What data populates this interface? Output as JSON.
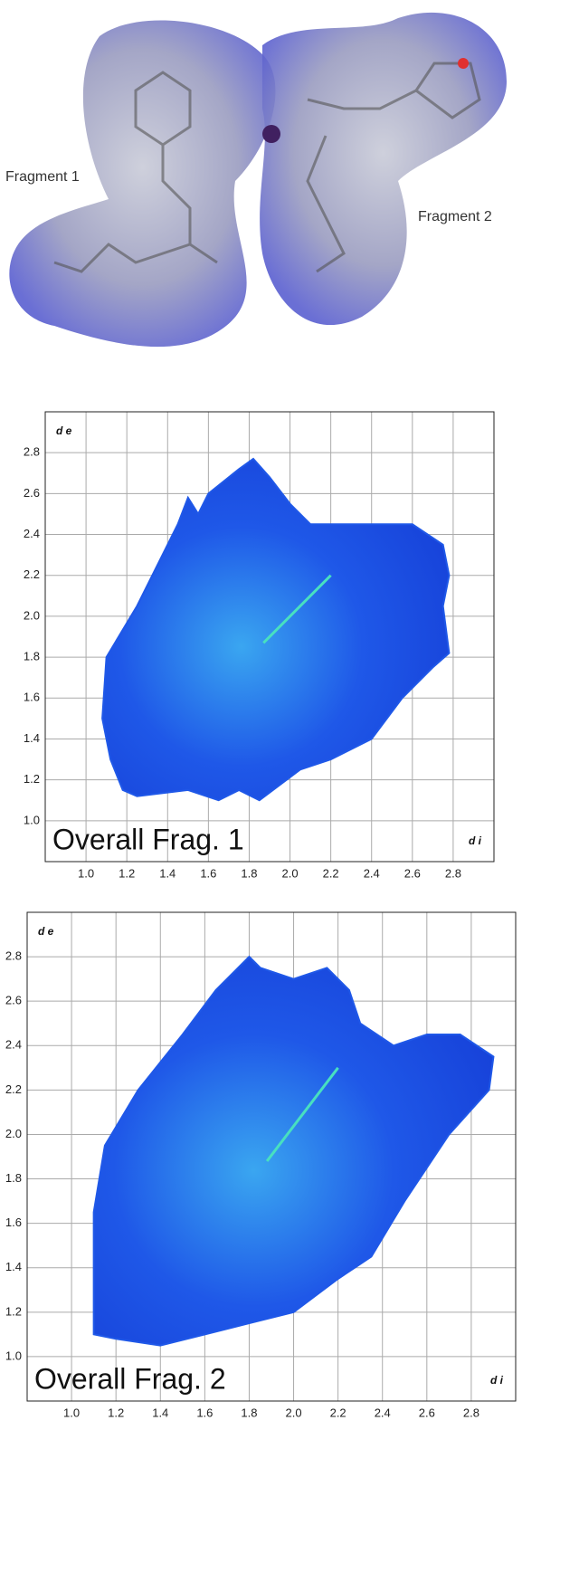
{
  "figure": {
    "labels": [
      "Fragment 1",
      "Fragment 2"
    ]
  },
  "chart_data": [
    {
      "type": "fingerprint",
      "title": "Overall Frag. 1",
      "xlabel": "d i",
      "ylabel": "d e",
      "color": "#1f58e8",
      "highlight_color": "#48e0c0",
      "grid": true,
      "xlim": [
        0.8,
        3.0
      ],
      "ylim": [
        0.8,
        3.0
      ],
      "xticks": [
        {
          "value": 1,
          "label": "1.0"
        },
        {
          "value": 1.2,
          "label": "1.2"
        },
        {
          "value": 1.4,
          "label": "1.4"
        },
        {
          "value": 1.6,
          "label": "1.6"
        },
        {
          "value": 1.8,
          "label": "1.8"
        },
        {
          "value": 2,
          "label": "2.0"
        },
        {
          "value": 2.2,
          "label": "2.2"
        },
        {
          "value": 2.4,
          "label": "2.4"
        },
        {
          "value": 2.6,
          "label": "2.6"
        },
        {
          "value": 2.8,
          "label": "2.8"
        }
      ],
      "yticks": [
        {
          "value": 1,
          "label": "1.0"
        },
        {
          "value": 1.2,
          "label": "1.2"
        },
        {
          "value": 1.4,
          "label": "1.4"
        },
        {
          "value": 1.6,
          "label": "1.6"
        },
        {
          "value": 1.8,
          "label": "1.8"
        },
        {
          "value": 2,
          "label": "2.0"
        },
        {
          "value": 2.2,
          "label": "2.2"
        },
        {
          "value": 2.4,
          "label": "2.4"
        },
        {
          "value": 2.6,
          "label": "2.6"
        },
        {
          "value": 2.8,
          "label": "2.8"
        }
      ],
      "outline": {
        "x": [
          1.1,
          1.25,
          1.45,
          1.5,
          1.55,
          1.6,
          1.75,
          1.82,
          1.9,
          2.0,
          2.1,
          2.25,
          2.45,
          2.6,
          2.75,
          2.78,
          2.75,
          2.78,
          2.7,
          2.55,
          2.4,
          2.2,
          2.05,
          1.85,
          1.75,
          1.65,
          1.5,
          1.25,
          1.18,
          1.12,
          1.08
        ],
        "y": [
          1.8,
          2.05,
          2.45,
          2.58,
          2.5,
          2.6,
          2.72,
          2.77,
          2.68,
          2.55,
          2.45,
          2.45,
          2.45,
          2.45,
          2.35,
          2.2,
          2.05,
          1.82,
          1.75,
          1.6,
          1.4,
          1.3,
          1.25,
          1.1,
          1.15,
          1.1,
          1.15,
          1.12,
          1.15,
          1.3,
          1.5
        ]
      },
      "spike": {
        "x": [
          1.87,
          2.2
        ],
        "y": [
          1.87,
          2.2
        ]
      }
    },
    {
      "type": "fingerprint",
      "title": "Overall Frag. 2",
      "xlabel": "d i",
      "ylabel": "d e",
      "color": "#1f58e8",
      "highlight_color": "#48e0c0",
      "grid": true,
      "xlim": [
        0.8,
        3.0
      ],
      "ylim": [
        0.8,
        3.0
      ],
      "xticks": [
        {
          "value": 1,
          "label": "1.0"
        },
        {
          "value": 1.2,
          "label": "1.2"
        },
        {
          "value": 1.4,
          "label": "1.4"
        },
        {
          "value": 1.6,
          "label": "1.6"
        },
        {
          "value": 1.8,
          "label": "1.8"
        },
        {
          "value": 2,
          "label": "2.0"
        },
        {
          "value": 2.2,
          "label": "2.2"
        },
        {
          "value": 2.4,
          "label": "2.4"
        },
        {
          "value": 2.6,
          "label": "2.6"
        },
        {
          "value": 2.8,
          "label": "2.8"
        }
      ],
      "yticks": [
        {
          "value": 1,
          "label": "1.0"
        },
        {
          "value": 1.2,
          "label": "1.2"
        },
        {
          "value": 1.4,
          "label": "1.4"
        },
        {
          "value": 1.6,
          "label": "1.6"
        },
        {
          "value": 1.8,
          "label": "1.8"
        },
        {
          "value": 2,
          "label": "2.0"
        },
        {
          "value": 2.2,
          "label": "2.2"
        },
        {
          "value": 2.4,
          "label": "2.4"
        },
        {
          "value": 2.6,
          "label": "2.6"
        },
        {
          "value": 2.8,
          "label": "2.8"
        }
      ],
      "outline": {
        "x": [
          1.1,
          1.1,
          1.15,
          1.3,
          1.5,
          1.65,
          1.8,
          1.85,
          2.0,
          2.15,
          2.25,
          2.3,
          2.45,
          2.6,
          2.75,
          2.9,
          2.88,
          2.7,
          2.5,
          2.35,
          2.2,
          2.0,
          1.8,
          1.6,
          1.4,
          1.2
        ],
        "y": [
          1.1,
          1.65,
          1.95,
          2.2,
          2.45,
          2.65,
          2.8,
          2.75,
          2.7,
          2.75,
          2.65,
          2.5,
          2.4,
          2.45,
          2.45,
          2.35,
          2.2,
          2.0,
          1.7,
          1.45,
          1.35,
          1.2,
          1.15,
          1.1,
          1.05,
          1.08
        ]
      },
      "spike": {
        "x": [
          1.88,
          2.2
        ],
        "y": [
          1.88,
          2.3
        ]
      }
    }
  ]
}
